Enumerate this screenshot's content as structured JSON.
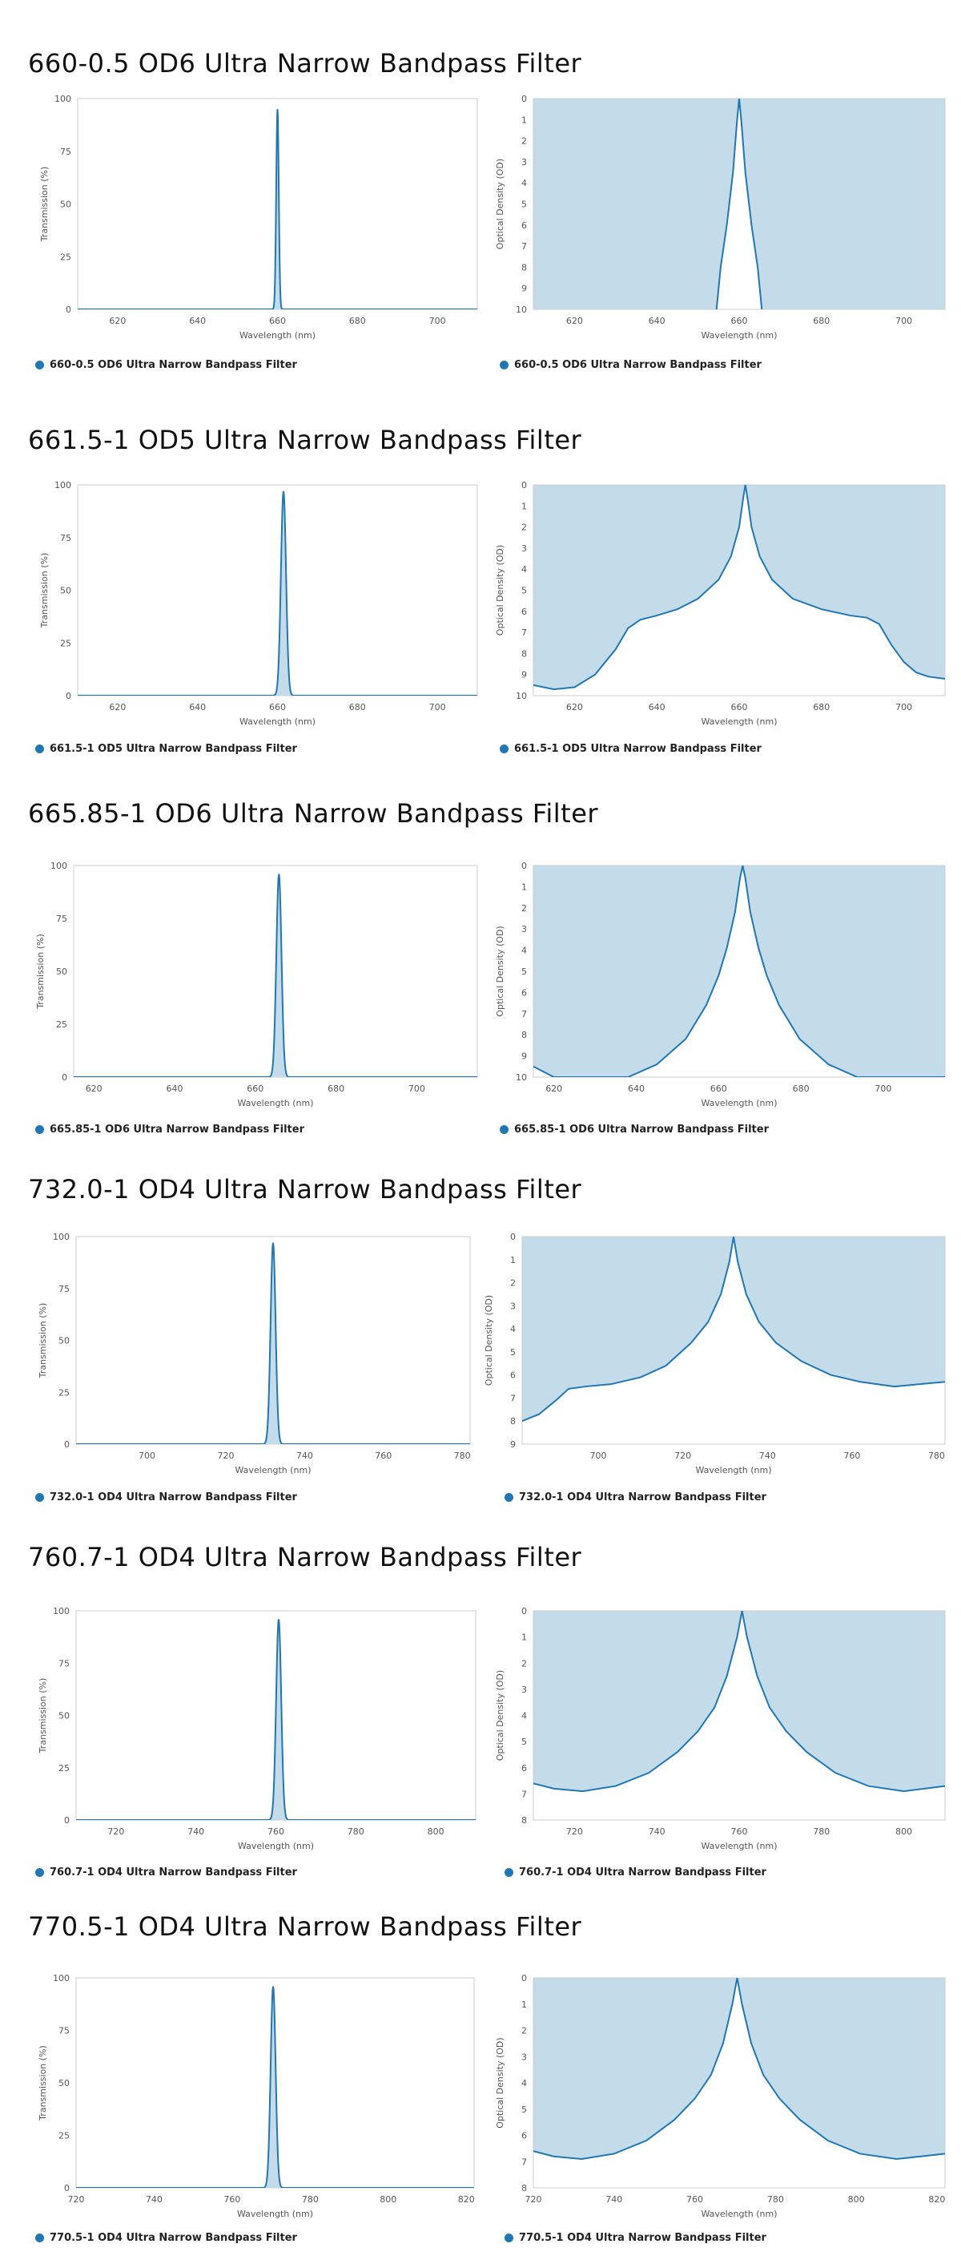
{
  "colors": {
    "line": "#1f77b4",
    "fill": "#c4dcea",
    "frame": "#cccccc"
  },
  "sections": [
    {
      "title": "660-0.5 OD6 Ultra Narrow Bandpass Filter"
    },
    {
      "title": "661.5-1 OD5 Ultra Narrow Bandpass Filter"
    },
    {
      "title": "665.85-1 OD6 Ultra Narrow Bandpass Filter"
    },
    {
      "title": "732.0-1 OD4 Ultra Narrow Bandpass Filter"
    },
    {
      "title": "760.7-1 OD4 Ultra Narrow Bandpass Filter"
    },
    {
      "title": "770.5-1 OD4 Ultra Narrow Bandpass Filter"
    }
  ],
  "chart_data": [
    {
      "type": "line",
      "series_name": "660-0.5 OD6 Ultra Narrow Bandpass Filter",
      "transmission": {
        "xlabel": "Wavelength (nm)",
        "ylabel": "Transmission (%)",
        "xlim": [
          610,
          710
        ],
        "ylim": [
          0,
          100
        ],
        "xticks": [
          620,
          640,
          660,
          680,
          700
        ],
        "yticks": [
          0,
          25,
          50,
          75,
          100
        ],
        "center": 660.0,
        "peak": 95,
        "fwhm": 0.5
      },
      "od": {
        "xlabel": "Wavelength (nm)",
        "ylabel": "Optical Density (OD)",
        "xlim": [
          610,
          710
        ],
        "ylim": [
          0,
          10
        ],
        "xticks": [
          620,
          640,
          660,
          680,
          700
        ],
        "yticks": [
          0,
          1,
          2,
          3,
          4,
          5,
          6,
          7,
          8,
          9,
          10
        ],
        "center": 660.0,
        "points": [
          [
            654.5,
            10
          ],
          [
            655.5,
            8
          ],
          [
            657,
            6
          ],
          [
            658.5,
            3.5
          ],
          [
            659.5,
            1
          ],
          [
            660,
            0
          ],
          [
            660.5,
            1
          ],
          [
            661.5,
            3.5
          ],
          [
            663,
            6
          ],
          [
            664.5,
            8
          ],
          [
            665.5,
            10
          ]
        ]
      }
    },
    {
      "type": "line",
      "series_name": "661.5-1 OD5 Ultra Narrow Bandpass Filter",
      "transmission": {
        "xlabel": "Wavelength (nm)",
        "ylabel": "Transmission (%)",
        "xlim": [
          610,
          710
        ],
        "ylim": [
          0,
          100
        ],
        "xticks": [
          620,
          640,
          660,
          680,
          700
        ],
        "yticks": [
          0,
          25,
          50,
          75,
          100
        ],
        "center": 661.5,
        "peak": 97,
        "fwhm": 1.0
      },
      "od": {
        "xlabel": "Wavelength (nm)",
        "ylabel": "Optical Density (OD)",
        "xlim": [
          610,
          710
        ],
        "ylim": [
          0,
          10
        ],
        "xticks": [
          620,
          640,
          660,
          680,
          700
        ],
        "yticks": [
          0,
          1,
          2,
          3,
          4,
          5,
          6,
          7,
          8,
          9,
          10
        ],
        "center": 661.5,
        "points": [
          [
            610,
            9.5
          ],
          [
            615,
            9.7
          ],
          [
            620,
            9.6
          ],
          [
            625,
            9.0
          ],
          [
            630,
            7.8
          ],
          [
            633,
            6.8
          ],
          [
            636,
            6.4
          ],
          [
            640,
            6.2
          ],
          [
            645,
            5.9
          ],
          [
            650,
            5.4
          ],
          [
            655,
            4.5
          ],
          [
            658,
            3.4
          ],
          [
            660,
            2.0
          ],
          [
            661,
            0.6
          ],
          [
            661.5,
            0
          ],
          [
            662,
            0.6
          ],
          [
            663,
            2.0
          ],
          [
            665,
            3.4
          ],
          [
            668,
            4.5
          ],
          [
            673,
            5.4
          ],
          [
            680,
            5.9
          ],
          [
            687,
            6.2
          ],
          [
            691,
            6.3
          ],
          [
            694,
            6.6
          ],
          [
            697,
            7.6
          ],
          [
            700,
            8.4
          ],
          [
            703,
            8.9
          ],
          [
            706,
            9.1
          ],
          [
            710,
            9.2
          ]
        ]
      }
    },
    {
      "type": "line",
      "series_name": "665.85-1 OD6 Ultra Narrow Bandpass Filter",
      "transmission": {
        "xlabel": "Wavelength (nm)",
        "ylabel": "Transmission (%)",
        "xlim": [
          615,
          715
        ],
        "ylim": [
          0,
          100
        ],
        "xticks": [
          620,
          640,
          660,
          680,
          700
        ],
        "yticks": [
          0,
          25,
          50,
          75,
          100
        ],
        "center": 665.85,
        "peak": 96,
        "fwhm": 1.0
      },
      "od": {
        "xlabel": "Wavelength (nm)",
        "ylabel": "Optical Density (OD)",
        "xlim": [
          615,
          715
        ],
        "ylim": [
          0,
          10
        ],
        "xticks": [
          620,
          640,
          660,
          680,
          700
        ],
        "yticks": [
          0,
          1,
          2,
          3,
          4,
          5,
          6,
          7,
          8,
          9,
          10
        ],
        "center": 665.85,
        "points": [
          [
            615,
            9.5
          ],
          [
            620,
            10
          ],
          [
            638,
            10
          ],
          [
            645,
            9.4
          ],
          [
            652,
            8.2
          ],
          [
            657,
            6.6
          ],
          [
            660,
            5.2
          ],
          [
            662,
            3.9
          ],
          [
            664,
            2.2
          ],
          [
            665.2,
            0.6
          ],
          [
            665.85,
            0
          ],
          [
            666.5,
            0.6
          ],
          [
            667.7,
            2.2
          ],
          [
            669.7,
            3.9
          ],
          [
            671.7,
            5.2
          ],
          [
            674.7,
            6.6
          ],
          [
            679.7,
            8.2
          ],
          [
            686.7,
            9.4
          ],
          [
            693.7,
            10
          ],
          [
            715,
            10
          ]
        ]
      }
    },
    {
      "type": "line",
      "series_name": "732.0-1 OD4 Ultra Narrow Bandpass Filter",
      "transmission": {
        "xlabel": "Wavelength (nm)",
        "ylabel": "Transmission (%)",
        "xlim": [
          682,
          782
        ],
        "ylim": [
          0,
          100
        ],
        "xticks": [
          700,
          720,
          740,
          760,
          780
        ],
        "yticks": [
          0,
          25,
          50,
          75,
          100
        ],
        "center": 732.0,
        "peak": 97,
        "fwhm": 1.0
      },
      "od": {
        "xlabel": "Wavelength (nm)",
        "ylabel": "Optical Density (OD)",
        "xlim": [
          682,
          782
        ],
        "ylim": [
          0,
          9
        ],
        "xticks": [
          700,
          720,
          740,
          760,
          780
        ],
        "yticks": [
          0,
          1,
          2,
          3,
          4,
          5,
          6,
          7,
          8,
          9
        ],
        "center": 732.0,
        "points": [
          [
            682,
            8.0
          ],
          [
            686,
            7.7
          ],
          [
            690,
            7.1
          ],
          [
            693,
            6.6
          ],
          [
            697,
            6.5
          ],
          [
            703,
            6.4
          ],
          [
            710,
            6.1
          ],
          [
            716,
            5.6
          ],
          [
            722,
            4.6
          ],
          [
            726,
            3.7
          ],
          [
            729,
            2.5
          ],
          [
            731,
            1.1
          ],
          [
            732,
            0
          ],
          [
            733,
            1.1
          ],
          [
            735,
            2.5
          ],
          [
            738,
            3.7
          ],
          [
            742,
            4.6
          ],
          [
            748,
            5.4
          ],
          [
            755,
            6.0
          ],
          [
            762,
            6.3
          ],
          [
            770,
            6.5
          ],
          [
            776,
            6.4
          ],
          [
            782,
            6.3
          ]
        ]
      }
    },
    {
      "type": "line",
      "series_name": "760.7-1 OD4 Ultra Narrow Bandpass Filter",
      "transmission": {
        "xlabel": "Wavelength (nm)",
        "ylabel": "Transmission (%)",
        "xlim": [
          710,
          810
        ],
        "ylim": [
          0,
          100
        ],
        "xticks": [
          720,
          740,
          760,
          780,
          800
        ],
        "yticks": [
          0,
          25,
          50,
          75,
          100
        ],
        "center": 760.7,
        "peak": 96,
        "fwhm": 1.0
      },
      "od": {
        "xlabel": "Wavelength (nm)",
        "ylabel": "Optical Density (OD)",
        "xlim": [
          710,
          810
        ],
        "ylim": [
          0,
          8
        ],
        "xticks": [
          720,
          740,
          760,
          780,
          800
        ],
        "yticks": [
          0,
          1,
          2,
          3,
          4,
          5,
          6,
          7,
          8
        ],
        "center": 760.7,
        "points": [
          [
            710,
            6.6
          ],
          [
            715,
            6.8
          ],
          [
            722,
            6.9
          ],
          [
            730,
            6.7
          ],
          [
            738,
            6.2
          ],
          [
            745,
            5.4
          ],
          [
            750,
            4.6
          ],
          [
            754,
            3.7
          ],
          [
            757,
            2.5
          ],
          [
            759.5,
            1.0
          ],
          [
            760.7,
            0
          ],
          [
            761.9,
            1.0
          ],
          [
            764.4,
            2.5
          ],
          [
            767.4,
            3.7
          ],
          [
            771.4,
            4.6
          ],
          [
            776.4,
            5.4
          ],
          [
            783.4,
            6.2
          ],
          [
            791.4,
            6.7
          ],
          [
            800,
            6.9
          ],
          [
            805,
            6.8
          ],
          [
            810,
            6.7
          ]
        ]
      }
    },
    {
      "type": "line",
      "series_name": "770.5-1 OD4 Ultra Narrow Bandpass Filter",
      "transmission": {
        "xlabel": "Wavelength (nm)",
        "ylabel": "Transmission (%)",
        "xlim": [
          720,
          822
        ],
        "ylim": [
          0,
          100
        ],
        "xticks": [
          720,
          740,
          760,
          780,
          800,
          820
        ],
        "yticks": [
          0,
          25,
          50,
          75,
          100
        ],
        "center": 770.5,
        "peak": 96,
        "fwhm": 1.0
      },
      "od": {
        "xlabel": "Wavelength (nm)",
        "ylabel": "Optical Density (OD)",
        "xlim": [
          720,
          822
        ],
        "ylim": [
          0,
          8
        ],
        "xticks": [
          720,
          740,
          760,
          780,
          800,
          820
        ],
        "yticks": [
          0,
          1,
          2,
          3,
          4,
          5,
          6,
          7,
          8
        ],
        "center": 770.5,
        "points": [
          [
            720,
            6.6
          ],
          [
            725,
            6.8
          ],
          [
            732,
            6.9
          ],
          [
            740,
            6.7
          ],
          [
            748,
            6.2
          ],
          [
            755,
            5.4
          ],
          [
            760,
            4.6
          ],
          [
            764,
            3.7
          ],
          [
            767,
            2.5
          ],
          [
            769.3,
            1.0
          ],
          [
            770.5,
            0
          ],
          [
            771.7,
            1.0
          ],
          [
            774,
            2.5
          ],
          [
            777,
            3.7
          ],
          [
            781,
            4.6
          ],
          [
            786,
            5.4
          ],
          [
            793,
            6.2
          ],
          [
            801,
            6.7
          ],
          [
            810,
            6.9
          ],
          [
            816,
            6.8
          ],
          [
            822,
            6.7
          ]
        ]
      }
    }
  ]
}
